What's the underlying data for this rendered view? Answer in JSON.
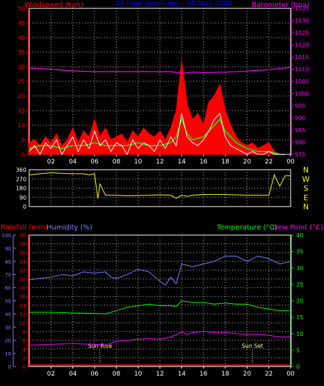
{
  "chart_data": [
    {
      "type": "line",
      "title": "24 hour graph day : 05 May 2008",
      "left_axis": {
        "label": "Windspeed (kph)",
        "range": [
          0,
          50
        ],
        "ticks": [
          0,
          5,
          10,
          15,
          20,
          25,
          30,
          35,
          40,
          45,
          50
        ]
      },
      "right_axis": {
        "label": "Barometer (hpa)",
        "range": [
          975,
          1035
        ],
        "ticks": [
          975,
          980,
          985,
          990,
          995,
          1000,
          1005,
          1010,
          1015,
          1020,
          1025,
          1030,
          1035
        ]
      },
      "x_ticks": [
        "02",
        "04",
        "06",
        "08",
        "10",
        "12",
        "14",
        "16",
        "18",
        "20",
        "22",
        "00"
      ],
      "grid": true,
      "series": [
        {
          "name": "",
          "color": "#ff0000",
          "x": [
            0,
            0.5,
            1,
            1.5,
            2,
            2.5,
            3,
            3.5,
            4,
            4.5,
            5,
            5.5,
            6,
            6.5,
            7,
            7.5,
            8,
            8.5,
            9,
            9.5,
            10,
            10.5,
            11,
            11.5,
            12,
            12.5,
            13,
            13.5,
            14,
            14.5,
            15,
            15.5,
            16,
            16.5,
            17,
            17.5,
            18,
            18.5,
            19,
            19.5,
            20,
            20.5,
            21,
            21.5,
            22,
            22.5,
            23,
            23.5
          ],
          "y": [
            4,
            5,
            3,
            6,
            4,
            7,
            3,
            5,
            9,
            4,
            8,
            6,
            12,
            6,
            9,
            5,
            6,
            7,
            4,
            8,
            6,
            9,
            7,
            6,
            8,
            5,
            9,
            15,
            32,
            17,
            12,
            14,
            10,
            18,
            20,
            24,
            15,
            10,
            6,
            4,
            3,
            4,
            2,
            3,
            4,
            1,
            0,
            0
          ]
        },
        {
          "name": "",
          "color": "#00ff00",
          "x": [
            0,
            1,
            2,
            3,
            4,
            5,
            6,
            7,
            8,
            9,
            10,
            11,
            12,
            13,
            13.5,
            14,
            14.5,
            15,
            16,
            17,
            17.5,
            18,
            19,
            20,
            21,
            22,
            23,
            23.5
          ],
          "y": [
            2,
            3,
            3,
            2,
            3,
            3,
            4,
            3,
            3,
            3,
            4,
            3,
            3,
            4,
            6,
            12,
            7,
            5,
            6,
            10,
            12,
            8,
            4,
            2,
            1,
            1,
            0,
            0
          ]
        },
        {
          "name": "",
          "color": "#ffffff",
          "x": [
            0,
            0.5,
            1,
            1.5,
            2,
            2.5,
            3,
            3.5,
            4,
            4.5,
            5,
            5.5,
            6,
            6.5,
            7,
            7.5,
            8,
            8.5,
            9,
            9.5,
            10,
            10.5,
            11,
            11.5,
            12,
            12.5,
            13,
            13.5,
            14,
            14.5,
            15,
            15.5,
            16,
            16.5,
            17,
            17.5,
            18,
            18.5,
            19,
            19.5,
            20,
            20.5,
            21,
            21.5,
            22,
            22.5,
            23,
            23.5
          ],
          "y": [
            1,
            3,
            0,
            4,
            2,
            5,
            0,
            3,
            6,
            1,
            5,
            2,
            8,
            3,
            5,
            1,
            4,
            3,
            0,
            5,
            2,
            4,
            3,
            1,
            5,
            2,
            6,
            3,
            14,
            6,
            4,
            3,
            5,
            8,
            12,
            14,
            6,
            3,
            2,
            1,
            0,
            1,
            0,
            0,
            1,
            0,
            0,
            0
          ]
        },
        {
          "name": "",
          "color": "#ff00ff",
          "x": [
            0,
            2,
            4,
            6,
            8,
            10,
            12,
            13,
            14,
            15,
            16,
            18,
            20,
            22,
            24
          ],
          "y": [
            1010.5,
            1010.0,
            1009.3,
            1009.0,
            1009.0,
            1009.0,
            1009.0,
            1009.0,
            1008.3,
            1008.8,
            1008.6,
            1008.8,
            1009.2,
            1009.8,
            1010.7
          ]
        }
      ]
    },
    {
      "type": "line",
      "left_axis": {
        "range": [
          0,
          360
        ],
        "ticks": [
          0,
          90,
          180,
          270,
          360
        ]
      },
      "right_labels": [
        "N",
        "W",
        "S",
        "E",
        "N"
      ],
      "series": [
        {
          "name": "",
          "color": "#ffff00",
          "x": [
            0,
            1,
            2,
            3,
            4,
            5,
            5.5,
            6,
            6.3,
            6.5,
            7,
            8,
            9,
            10,
            11,
            12,
            13,
            13.5,
            14,
            14.5,
            15,
            16,
            17,
            18,
            19,
            20,
            21,
            22,
            22.5,
            23,
            23.5,
            24
          ],
          "y": [
            310,
            320,
            330,
            325,
            320,
            320,
            310,
            320,
            80,
            220,
            110,
            110,
            105,
            108,
            110,
            115,
            110,
            80,
            110,
            100,
            110,
            118,
            118,
            118,
            115,
            110,
            110,
            110,
            310,
            200,
            300,
            300
          ]
        }
      ]
    },
    {
      "type": "line",
      "left_axes": [
        {
          "label": "Rainfall (mm)",
          "range": [
            0,
            30
          ],
          "ticks": [
            0,
            2,
            4,
            6,
            8,
            10,
            12,
            14,
            16,
            18,
            20,
            22,
            24,
            26,
            28,
            30
          ]
        },
        {
          "label": "Humidity (%)",
          "range": [
            0,
            100
          ],
          "ticks": [
            0,
            10,
            20,
            30,
            40,
            50,
            60,
            70,
            80,
            90,
            100
          ]
        }
      ],
      "right_axes": [
        {
          "label": "Temperature (°C)",
          "range": [
            0,
            40
          ],
          "ticks": [
            0,
            5,
            10,
            15,
            20,
            25,
            30,
            35,
            40
          ]
        },
        {
          "label": "Dew Point (°C)"
        }
      ],
      "x_ticks": [
        "02",
        "04",
        "06",
        "08",
        "10",
        "12",
        "14",
        "16",
        "18",
        "20",
        "22",
        "00"
      ],
      "annotations": [
        {
          "label": "Sun Rise",
          "x": 6.5
        },
        {
          "label": "Sun Set",
          "x": 20.5
        }
      ],
      "grid": true,
      "series": [
        {
          "name": "",
          "color": "#8080ff",
          "x": [
            0,
            1,
            2,
            3,
            4,
            5,
            6,
            7,
            7.5,
            8,
            9,
            10,
            11,
            12,
            12.5,
            13,
            13.5,
            14,
            15,
            16,
            17,
            18,
            19,
            20,
            21,
            22,
            23,
            24
          ],
          "y": [
            66,
            67,
            68,
            70,
            69,
            72,
            71,
            72,
            68,
            67,
            70,
            74,
            72,
            65,
            62,
            68,
            63,
            78,
            76,
            78,
            80,
            84,
            84,
            80,
            84,
            82,
            78,
            80
          ]
        },
        {
          "name": "",
          "color": "#00ff00",
          "x": [
            0,
            2,
            4,
            6,
            7,
            8,
            9,
            10,
            11,
            12,
            13,
            13.5,
            14,
            15,
            16,
            17,
            18,
            19,
            20,
            21,
            22,
            23,
            24
          ],
          "y": [
            16.5,
            16.5,
            16.3,
            16.2,
            16,
            17,
            18,
            18.5,
            19,
            18.5,
            18.5,
            18.3,
            20,
            19.5,
            19.5,
            19,
            19.3,
            19,
            19,
            18,
            17.5,
            17,
            17
          ]
        },
        {
          "name": "",
          "color": "#ff00ff",
          "x": [
            0,
            2,
            4,
            6,
            7,
            8,
            9,
            10,
            11,
            12,
            13,
            14,
            14.5,
            15,
            16,
            17,
            18,
            19,
            20,
            21,
            22,
            23,
            24
          ],
          "y": [
            6.5,
            6.7,
            7,
            6.7,
            6.5,
            7.7,
            8,
            8.3,
            8.5,
            8.3,
            9,
            10.5,
            9.8,
            10.3,
            10.7,
            10.3,
            10.3,
            10,
            9.8,
            9.8,
            9.5,
            9,
            9
          ]
        },
        {
          "name": "",
          "color": "#ff0000",
          "x": [
            0,
            24
          ],
          "y": [
            0.3,
            0.3
          ]
        }
      ]
    }
  ]
}
